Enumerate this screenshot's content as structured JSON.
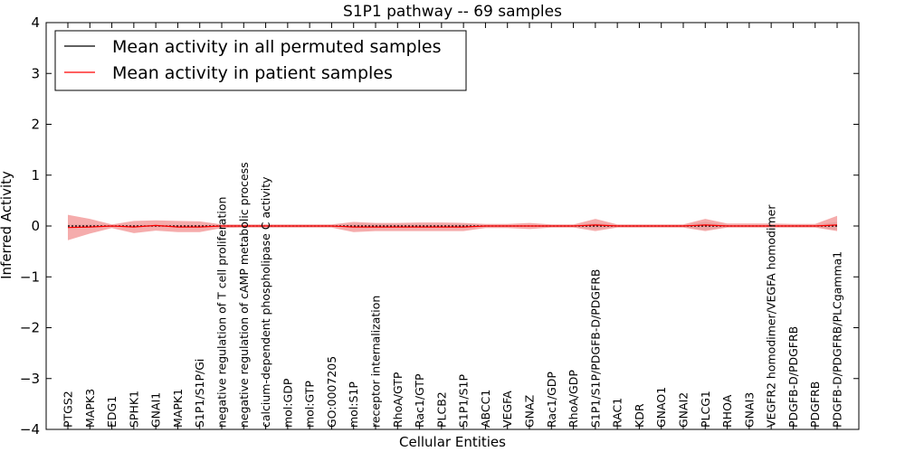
{
  "chart_data": {
    "type": "line",
    "title": "S1P1 pathway -- 69 samples",
    "xlabel": "Cellular Entities",
    "ylabel": "Inferred Activity",
    "ylim": [
      -4,
      4
    ],
    "yticks": [
      -4,
      -3,
      -2,
      -1,
      0,
      1,
      2,
      3,
      4
    ],
    "ytick_labels": [
      "−4",
      "−3",
      "−2",
      "−1",
      "0",
      "1",
      "2",
      "3",
      "4"
    ],
    "legend_position": "top-left",
    "colors": {
      "permuted": "#000000",
      "patient": "#ff0000",
      "patient_band": "#f08080",
      "permuted_band": "#c8c8c8"
    },
    "categories": [
      "PTGS2",
      "MAPK3",
      "EDG1",
      "SPHK1",
      "GNAI1",
      "MAPK1",
      "S1P1/S1P/Gi",
      "negative regulation of T cell proliferation",
      "negative regulation of cAMP metabolic process",
      "calcium-dependent phospholipase C activity",
      "mol:GDP",
      "mol:GTP",
      "GO:0007205",
      "mol:S1P",
      "receptor internalization",
      "RhoA/GTP",
      "Rac1/GTP",
      "PLCB2",
      "S1P1/S1P",
      "ABCC1",
      "VEGFA",
      "GNAZ",
      "Rac1/GDP",
      "RhoA/GDP",
      "S1P1/S1P/PDGFB-D/PDGFRB",
      "RAC1",
      "KDR",
      "GNAO1",
      "GNAI2",
      "PLCG1",
      "RHOA",
      "GNAI3",
      "VEGFR2 homodimer/VEGFA homodimer",
      "PDGFB-D/PDGFRB",
      "PDGFRB",
      "PDGFB-D/PDGFRB/PLCgamma1"
    ],
    "series": [
      {
        "name": "Mean activity in all permuted samples",
        "values": [
          0,
          0,
          0,
          0,
          0,
          0,
          0,
          0,
          0,
          0,
          0,
          0,
          0,
          0,
          0,
          0,
          0,
          0,
          0,
          0,
          0,
          0,
          0,
          0,
          0,
          0,
          0,
          0,
          0,
          0,
          0,
          0,
          0,
          0,
          0,
          0
        ],
        "lower": [
          -0.03,
          -0.03,
          -0.02,
          -0.02,
          -0.02,
          -0.02,
          -0.02,
          -0.02,
          -0.02,
          -0.02,
          -0.02,
          -0.02,
          -0.02,
          -0.04,
          -0.04,
          -0.03,
          -0.03,
          -0.03,
          -0.04,
          -0.02,
          -0.02,
          -0.02,
          -0.02,
          -0.02,
          -0.06,
          -0.02,
          -0.02,
          -0.02,
          -0.02,
          -0.08,
          -0.02,
          -0.02,
          -0.02,
          -0.02,
          -0.02,
          -0.08
        ],
        "upper": [
          0.03,
          0.03,
          0.02,
          0.02,
          0.02,
          0.02,
          0.02,
          0.02,
          0.02,
          0.02,
          0.02,
          0.02,
          0.02,
          0.04,
          0.04,
          0.03,
          0.03,
          0.03,
          0.04,
          0.02,
          0.02,
          0.02,
          0.02,
          0.02,
          0.06,
          0.02,
          0.02,
          0.02,
          0.02,
          0.08,
          0.02,
          0.02,
          0.02,
          0.02,
          0.02,
          0.08
        ]
      },
      {
        "name": "Mean activity in patient samples",
        "values": [
          -0.03,
          -0.02,
          0.0,
          -0.02,
          0.01,
          -0.02,
          -0.02,
          0.0,
          0.0,
          0.0,
          0.0,
          0.0,
          0.0,
          -0.02,
          -0.02,
          -0.02,
          -0.02,
          -0.02,
          -0.02,
          0.0,
          0.0,
          0.0,
          0.0,
          0.0,
          0.02,
          0.0,
          0.0,
          0.0,
          0.0,
          0.02,
          0.0,
          0.0,
          0.0,
          0.0,
          0.0,
          0.02
        ],
        "lower": [
          -0.28,
          -0.15,
          -0.04,
          -0.14,
          -0.09,
          -0.12,
          -0.12,
          -0.04,
          -0.03,
          -0.03,
          -0.03,
          -0.03,
          -0.03,
          -0.12,
          -0.1,
          -0.1,
          -0.1,
          -0.1,
          -0.1,
          -0.04,
          -0.04,
          -0.06,
          -0.03,
          -0.03,
          -0.1,
          -0.03,
          -0.03,
          -0.03,
          -0.03,
          -0.1,
          -0.03,
          -0.03,
          -0.03,
          -0.03,
          -0.03,
          -0.1
        ],
        "upper": [
          0.22,
          0.14,
          0.03,
          0.1,
          0.11,
          0.1,
          0.09,
          0.03,
          0.03,
          0.03,
          0.03,
          0.03,
          0.03,
          0.08,
          0.06,
          0.06,
          0.07,
          0.07,
          0.06,
          0.04,
          0.04,
          0.06,
          0.03,
          0.03,
          0.14,
          0.03,
          0.03,
          0.03,
          0.03,
          0.14,
          0.05,
          0.05,
          0.05,
          0.04,
          0.04,
          0.2
        ]
      }
    ]
  }
}
